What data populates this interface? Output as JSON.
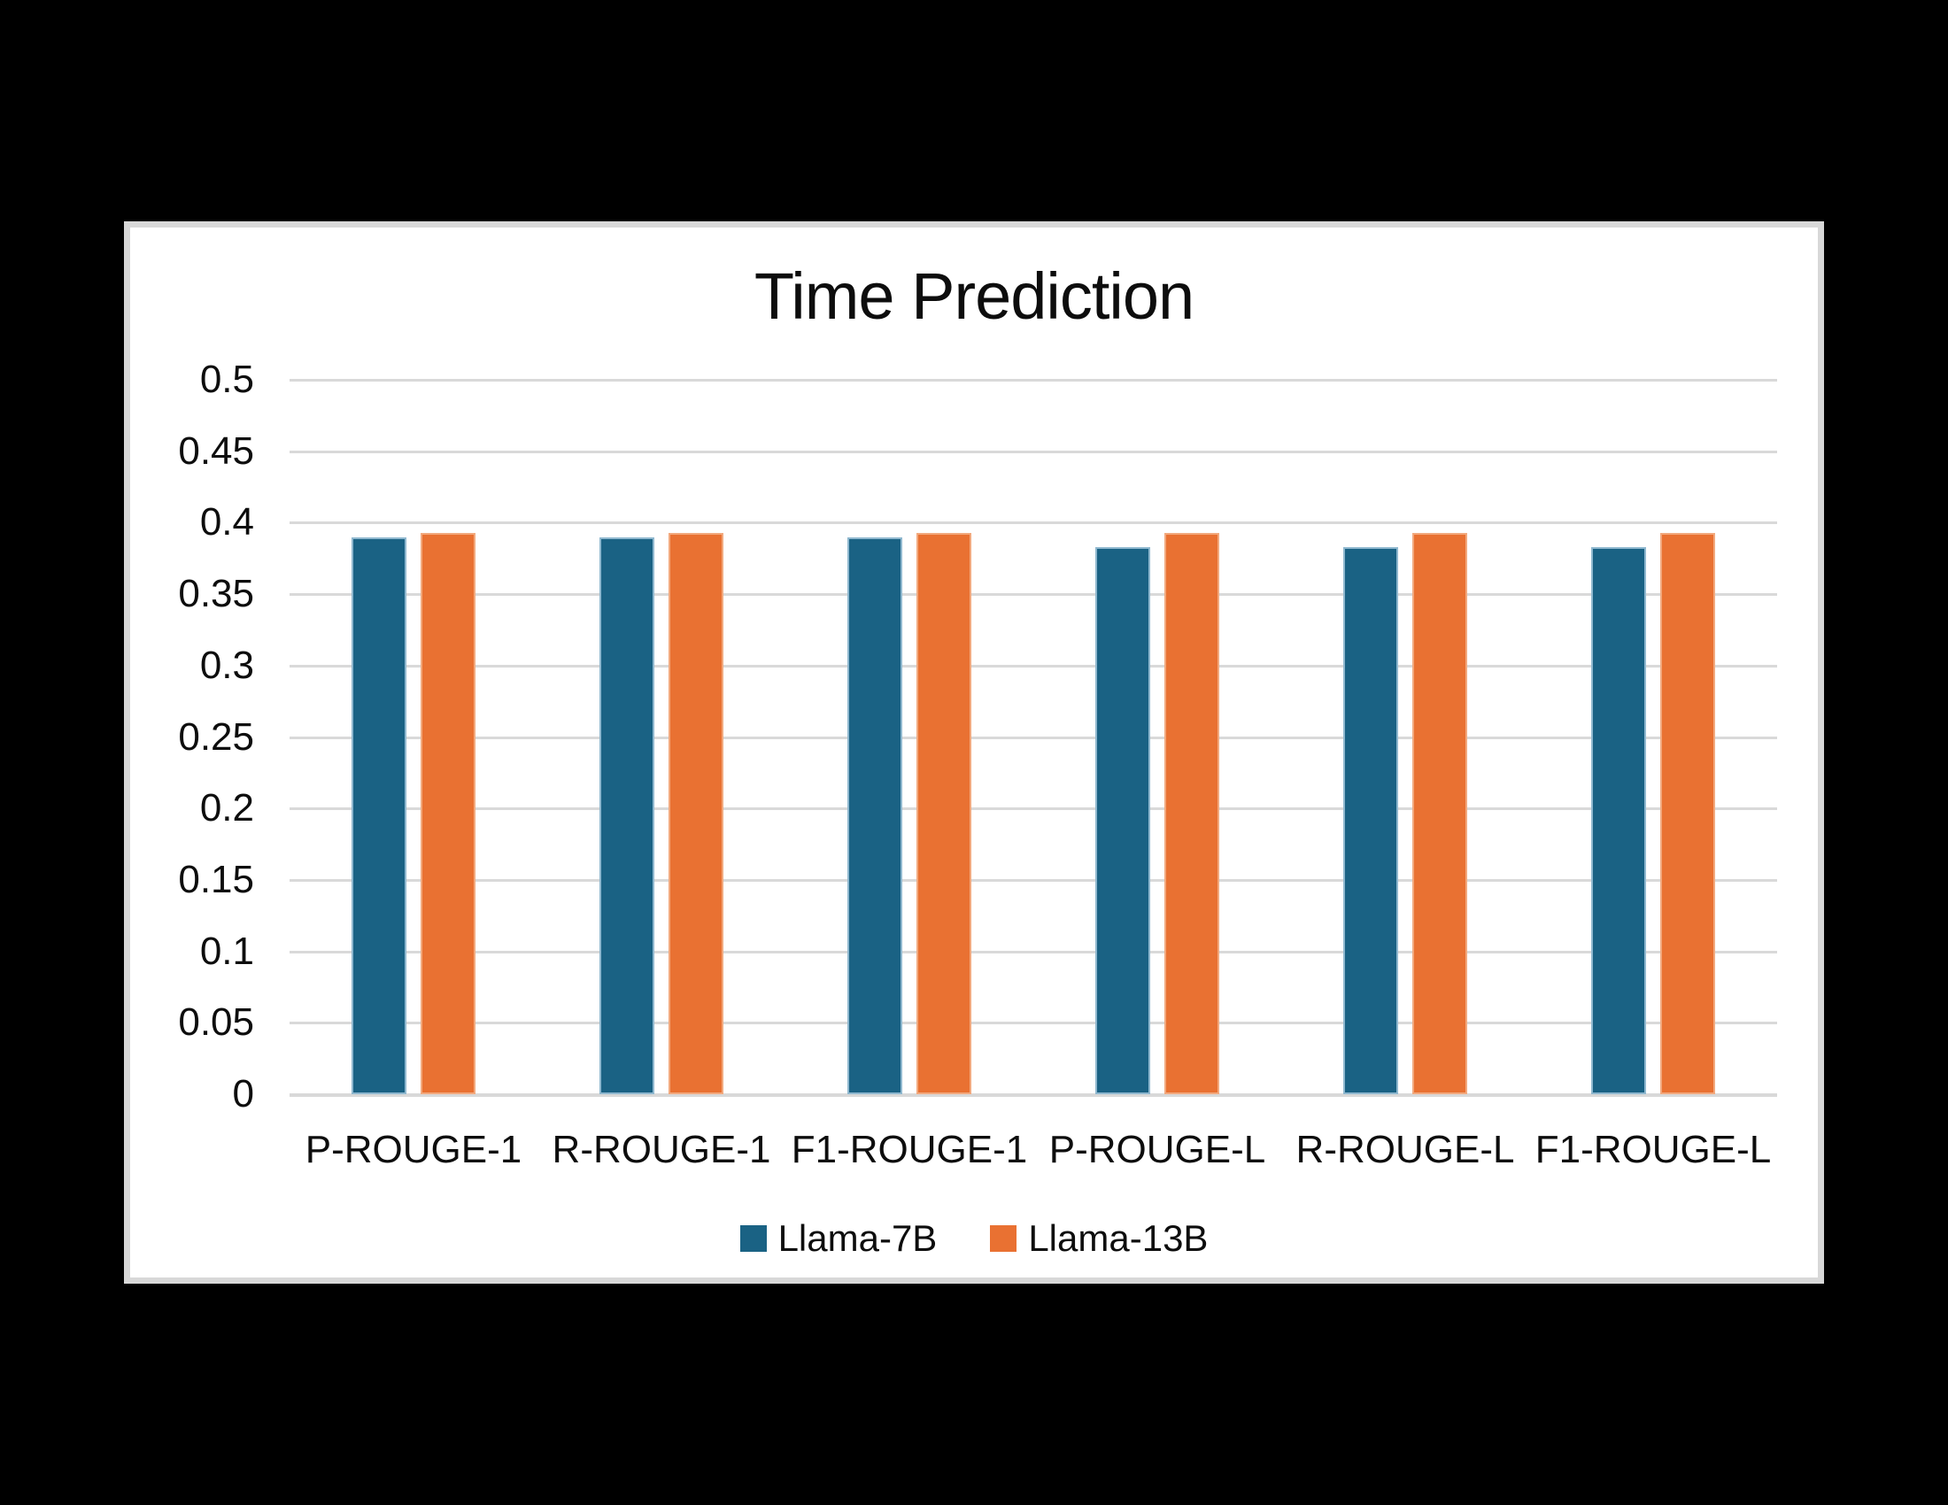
{
  "window": {
    "background_color": "#000000",
    "panel_background": "#ffffff",
    "panel_border_color": "#d8d8d8"
  },
  "chart_data": {
    "type": "bar",
    "title": "Time Prediction",
    "categories": [
      "P-ROUGE-1",
      "R-ROUGE-1",
      "F1-ROUGE-1",
      "P-ROUGE-L",
      "R-ROUGE-L",
      "F1-ROUGE-L"
    ],
    "series": [
      {
        "name": "Llama-7B",
        "color": "#1A6284",
        "edge_color": "#8FB8CF",
        "values": [
          0.39,
          0.39,
          0.39,
          0.383,
          0.383,
          0.383
        ]
      },
      {
        "name": "Llama-13B",
        "color": "#E97132",
        "edge_color": "#F2A97E",
        "values": [
          0.393,
          0.393,
          0.393,
          0.393,
          0.393,
          0.393
        ]
      }
    ],
    "xlabel": "",
    "ylabel": "",
    "ylim": [
      0,
      0.5
    ],
    "ytick_step": 0.05,
    "ytick_labels": [
      "0",
      "0.05",
      "0.1",
      "0.15",
      "0.2",
      "0.25",
      "0.3",
      "0.35",
      "0.4",
      "0.45",
      "0.5"
    ],
    "grid": "horizontal",
    "gridline_color": "#d9d9d9",
    "legend_position": "bottom",
    "text_color": "#0d0d0d"
  }
}
